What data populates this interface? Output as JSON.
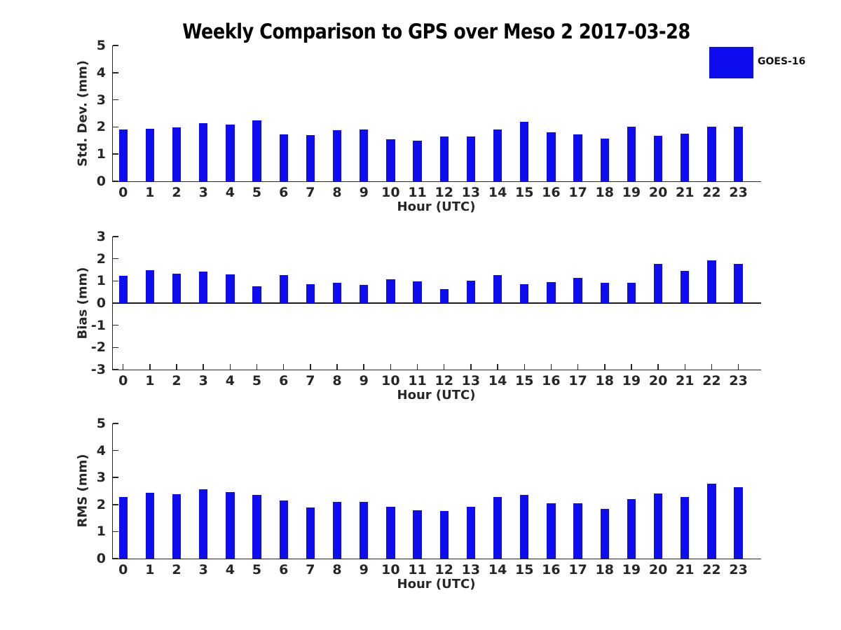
{
  "title": "Weekly Comparison to GPS over Meso 2 2017-03-28",
  "legend": {
    "label": "GOES-16",
    "color": "#0d0df0"
  },
  "colors": {
    "bar": "#0d0df0",
    "axis": "#262626",
    "background": "#ffffff"
  },
  "chart_data": [
    {
      "type": "bar",
      "series_name": "GOES-16",
      "ylabel": "Std. Dev. (mm)",
      "xlabel": "Hour (UTC)",
      "ylim": [
        0,
        5
      ],
      "yticks": [
        0,
        1,
        2,
        3,
        4,
        5
      ],
      "grid": false,
      "legend_position": "top-right",
      "bar_color": "#0d0df0",
      "categories": [
        "0",
        "1",
        "2",
        "3",
        "4",
        "5",
        "6",
        "7",
        "8",
        "9",
        "10",
        "11",
        "12",
        "13",
        "14",
        "15",
        "16",
        "17",
        "18",
        "19",
        "20",
        "21",
        "22",
        "23"
      ],
      "values": [
        1.9,
        1.93,
        1.98,
        2.15,
        2.1,
        2.23,
        1.74,
        1.69,
        1.87,
        1.9,
        1.54,
        1.49,
        1.64,
        1.64,
        1.9,
        2.2,
        1.81,
        1.72,
        1.58,
        2.0,
        1.68,
        1.76,
        2.02,
        2.02
      ]
    },
    {
      "type": "bar",
      "series_name": "GOES-16",
      "ylabel": "Bias (mm)",
      "xlabel": "Hour (UTC)",
      "ylim": [
        -3,
        3
      ],
      "yticks": [
        -3,
        -2,
        -1,
        0,
        1,
        2,
        3
      ],
      "grid": false,
      "bar_color": "#0d0df0",
      "categories": [
        "0",
        "1",
        "2",
        "3",
        "4",
        "5",
        "6",
        "7",
        "8",
        "9",
        "10",
        "11",
        "12",
        "13",
        "14",
        "15",
        "16",
        "17",
        "18",
        "19",
        "20",
        "21",
        "22",
        "23"
      ],
      "values": [
        1.22,
        1.48,
        1.32,
        1.42,
        1.3,
        0.77,
        1.27,
        0.86,
        0.92,
        0.83,
        1.07,
        0.97,
        0.62,
        1.02,
        1.25,
        0.86,
        0.95,
        1.13,
        0.93,
        0.92,
        1.78,
        1.45,
        1.92,
        1.77
      ]
    },
    {
      "type": "bar",
      "series_name": "GOES-16",
      "ylabel": "RMS (mm)",
      "xlabel": "Hour (UTC)",
      "ylim": [
        0,
        5
      ],
      "yticks": [
        0,
        1,
        2,
        3,
        4,
        5
      ],
      "grid": false,
      "bar_color": "#0d0df0",
      "categories": [
        "0",
        "1",
        "2",
        "3",
        "4",
        "5",
        "6",
        "7",
        "8",
        "9",
        "10",
        "11",
        "12",
        "13",
        "14",
        "15",
        "16",
        "17",
        "18",
        "19",
        "20",
        "21",
        "22",
        "23"
      ],
      "values": [
        2.27,
        2.44,
        2.39,
        2.57,
        2.46,
        2.37,
        2.15,
        1.9,
        2.1,
        2.09,
        1.91,
        1.8,
        1.77,
        1.93,
        2.27,
        2.36,
        2.05,
        2.05,
        1.83,
        2.19,
        2.42,
        2.29,
        2.76,
        2.65
      ]
    }
  ]
}
